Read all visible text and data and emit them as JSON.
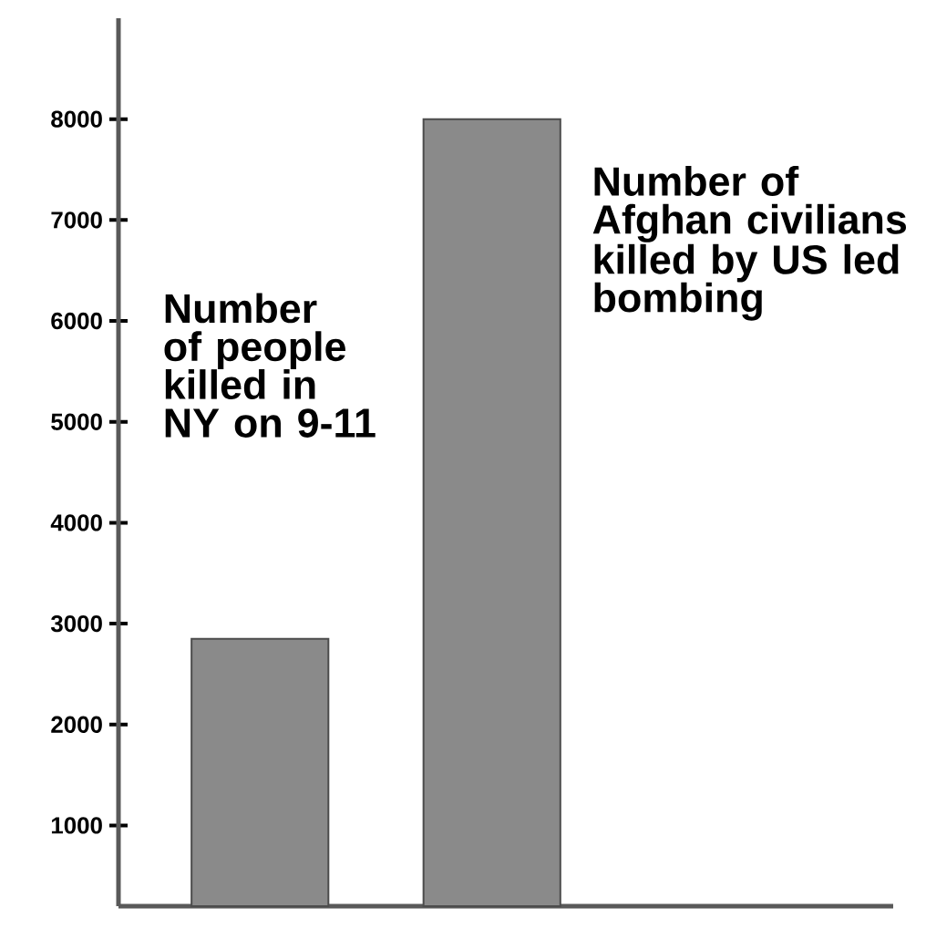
{
  "chart_data": {
    "type": "bar",
    "categories": [
      null,
      null
    ],
    "values": [
      2850,
      8000
    ],
    "color": "#8a8a8a",
    "ylim": [
      200,
      9000
    ],
    "yticks": [
      1000,
      2000,
      3000,
      4000,
      5000,
      6000,
      7000,
      8000
    ],
    "grid": false,
    "annotations": [
      "Number of people killed in NY on 9-11",
      "Number of Afghan civilians killed by US led bombing"
    ]
  }
}
